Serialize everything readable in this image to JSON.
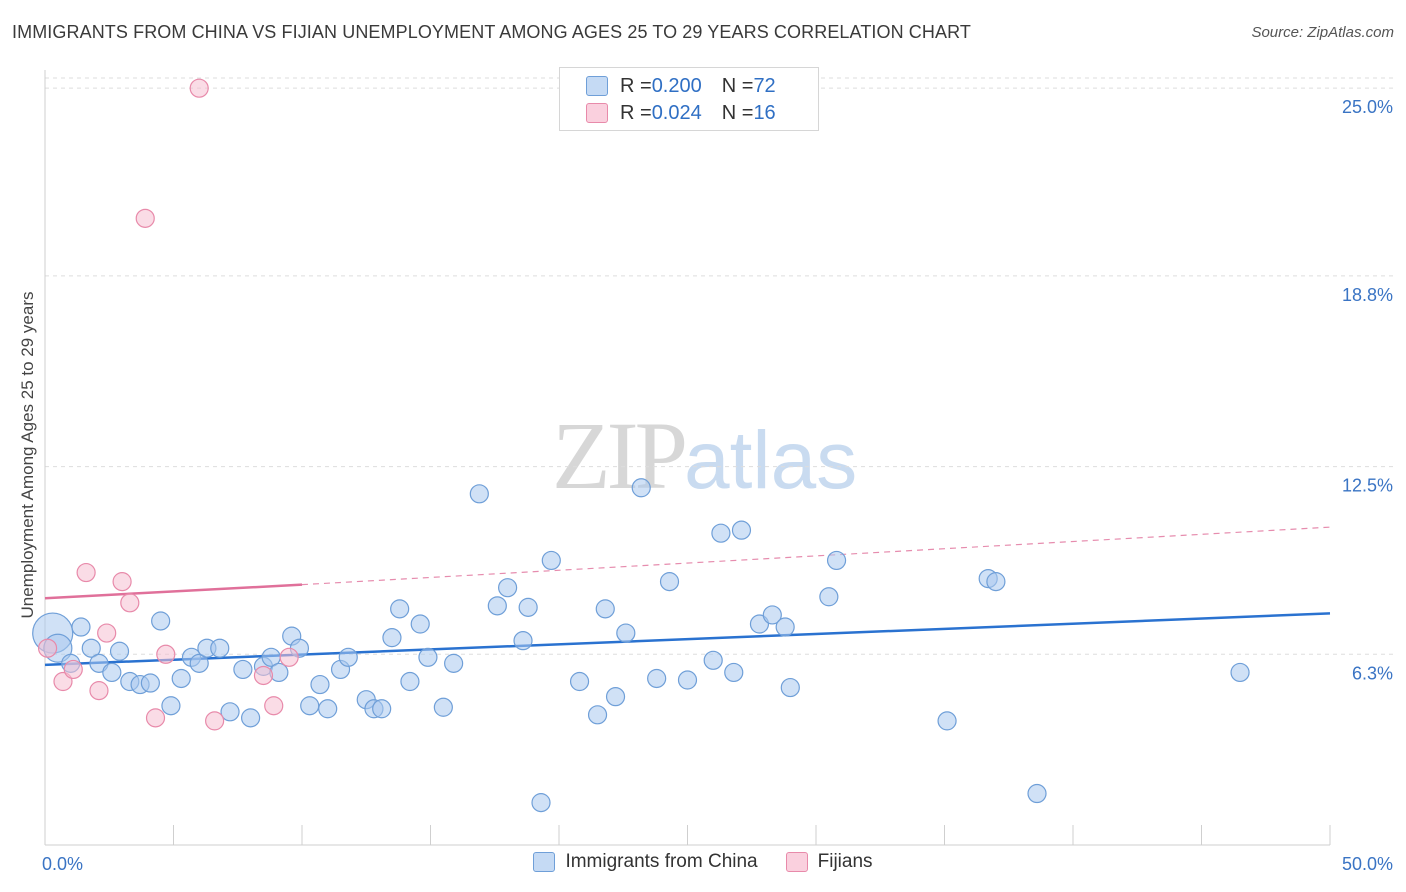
{
  "header": {
    "title": "IMMIGRANTS FROM CHINA VS FIJIAN UNEMPLOYMENT AMONG AGES 25 TO 29 YEARS CORRELATION CHART",
    "source": "Source: ZipAtlas.com"
  },
  "watermark": {
    "zip": "ZIP",
    "atlas": "atlas"
  },
  "legend_top": [
    {
      "r_label": "R = ",
      "r_value": "0.200",
      "n_label": "N = ",
      "n_value": "72"
    },
    {
      "r_label": "R = ",
      "r_value": "0.024",
      "n_label": "N = ",
      "n_value": "16"
    }
  ],
  "legend_bottom": [
    {
      "label": "Immigrants from China"
    },
    {
      "label": "Fijians"
    }
  ],
  "colors": {
    "blue_fill": "#aac8ee",
    "blue_stroke": "#6f9fd8",
    "blue_line": "#2a72d0",
    "pink_fill": "#f6c0d2",
    "pink_stroke": "#e88aaa",
    "pink_line": "#e0709a",
    "axis_label": "#3a74c4",
    "grid": "#dddddd"
  },
  "chart_data": {
    "type": "scatter",
    "title": "IMMIGRANTS FROM CHINA VS FIJIAN UNEMPLOYMENT AMONG AGES 25 TO 29 YEARS CORRELATION CHART",
    "xlabel": "",
    "ylabel": "Unemployment Among Ages 25 to 29 years",
    "xlim": [
      0,
      50
    ],
    "ylim": [
      0,
      25.6
    ],
    "x_tick_labels": [
      {
        "value": 0,
        "label": "0.0%"
      },
      {
        "value": 50,
        "label": "50.0%"
      }
    ],
    "y_tick_labels": [
      {
        "value": 6.3,
        "label": "6.3%"
      },
      {
        "value": 12.5,
        "label": "12.5%"
      },
      {
        "value": 18.8,
        "label": "18.8%"
      },
      {
        "value": 25.0,
        "label": "25.0%"
      }
    ],
    "series": [
      {
        "name": "Immigrants from China",
        "color": "blue",
        "trend": {
          "x": [
            0,
            50
          ],
          "y": [
            5.95,
            7.65
          ],
          "style": "solid"
        },
        "points": [
          [
            0.3,
            7.0,
            3
          ],
          [
            0.5,
            6.5,
            2
          ],
          [
            1.0,
            6.0,
            1
          ],
          [
            1.4,
            7.2,
            1
          ],
          [
            1.8,
            6.5,
            1
          ],
          [
            2.1,
            6.0,
            1
          ],
          [
            2.6,
            5.7,
            1
          ],
          [
            2.9,
            6.4,
            1
          ],
          [
            3.3,
            5.4,
            1
          ],
          [
            3.7,
            5.3,
            1
          ],
          [
            4.1,
            5.35,
            1
          ],
          [
            4.5,
            7.4,
            1
          ],
          [
            4.9,
            4.6,
            1
          ],
          [
            5.3,
            5.5,
            1
          ],
          [
            5.7,
            6.2,
            1
          ],
          [
            6.0,
            6.0,
            1
          ],
          [
            6.3,
            6.5,
            1
          ],
          [
            6.8,
            6.5,
            1
          ],
          [
            7.2,
            4.4,
            1
          ],
          [
            7.7,
            5.8,
            1
          ],
          [
            8.0,
            4.2,
            1
          ],
          [
            8.5,
            5.9,
            1
          ],
          [
            8.8,
            6.2,
            1
          ],
          [
            9.1,
            5.7,
            1
          ],
          [
            9.6,
            6.9,
            1
          ],
          [
            9.9,
            6.5,
            1
          ],
          [
            10.3,
            4.6,
            1
          ],
          [
            10.7,
            5.3,
            1
          ],
          [
            11.0,
            4.5,
            1
          ],
          [
            11.5,
            5.8,
            1
          ],
          [
            11.8,
            6.2,
            1
          ],
          [
            12.5,
            4.8,
            1
          ],
          [
            12.8,
            4.5,
            1
          ],
          [
            13.1,
            4.5,
            1
          ],
          [
            13.5,
            6.85,
            1
          ],
          [
            13.8,
            7.8,
            1
          ],
          [
            14.2,
            5.4,
            1
          ],
          [
            14.6,
            7.3,
            1
          ],
          [
            14.9,
            6.2,
            1
          ],
          [
            15.5,
            4.55,
            1
          ],
          [
            15.9,
            6.0,
            1
          ],
          [
            16.9,
            11.6,
            1
          ],
          [
            17.6,
            7.9,
            1
          ],
          [
            18.0,
            8.5,
            1
          ],
          [
            18.6,
            6.75,
            1
          ],
          [
            18.8,
            7.85,
            1
          ],
          [
            19.3,
            1.4,
            1
          ],
          [
            19.7,
            9.4,
            1
          ],
          [
            20.8,
            5.4,
            1
          ],
          [
            21.5,
            4.3,
            1
          ],
          [
            21.8,
            7.8,
            1
          ],
          [
            22.2,
            4.9,
            1
          ],
          [
            22.6,
            7.0,
            1
          ],
          [
            23.2,
            11.8,
            1
          ],
          [
            23.8,
            5.5,
            1
          ],
          [
            24.3,
            8.7,
            1
          ],
          [
            25.0,
            5.45,
            1
          ],
          [
            26.0,
            6.1,
            1
          ],
          [
            26.3,
            10.3,
            1
          ],
          [
            26.8,
            5.7,
            1
          ],
          [
            27.1,
            10.4,
            1
          ],
          [
            27.8,
            7.3,
            1
          ],
          [
            28.3,
            7.6,
            1
          ],
          [
            28.8,
            7.2,
            1
          ],
          [
            29.0,
            5.2,
            1
          ],
          [
            30.5,
            8.2,
            1
          ],
          [
            30.8,
            9.4,
            1
          ],
          [
            35.1,
            4.1,
            1
          ],
          [
            36.7,
            8.8,
            1
          ],
          [
            37.0,
            8.7,
            1
          ],
          [
            38.6,
            1.7,
            1
          ],
          [
            46.5,
            5.7,
            1
          ]
        ]
      },
      {
        "name": "Fijians",
        "color": "pink",
        "trend": {
          "x": [
            0,
            10
          ],
          "y": [
            8.15,
            8.6
          ],
          "style": "solid",
          "extended_to_x": 50,
          "extended_y": 10.5,
          "extended_style": "dashed"
        },
        "points": [
          [
            0.1,
            6.5,
            1
          ],
          [
            0.7,
            5.4,
            1
          ],
          [
            1.1,
            5.8,
            1
          ],
          [
            1.6,
            9.0,
            1
          ],
          [
            2.1,
            5.1,
            1
          ],
          [
            2.4,
            7.0,
            1
          ],
          [
            3.0,
            8.7,
            1
          ],
          [
            3.3,
            8.0,
            1
          ],
          [
            3.9,
            20.7,
            1
          ],
          [
            4.3,
            4.2,
            1
          ],
          [
            4.7,
            6.3,
            1
          ],
          [
            6.0,
            25.0,
            1
          ],
          [
            6.6,
            4.1,
            1
          ],
          [
            8.5,
            5.6,
            1
          ],
          [
            8.9,
            4.6,
            1
          ],
          [
            9.5,
            6.2,
            1
          ]
        ]
      }
    ]
  }
}
